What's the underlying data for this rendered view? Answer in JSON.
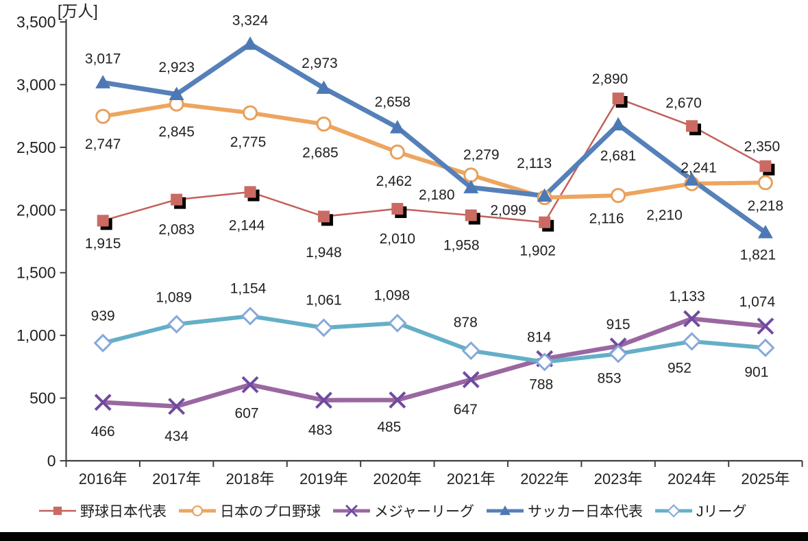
{
  "page": {
    "background": "#ffffff",
    "bottom_bar_color": "#000000"
  },
  "chart_data": {
    "type": "line",
    "title": "",
    "unit_label": "[万人]",
    "grid": false,
    "legend_position": "bottom",
    "categories": [
      "2016年",
      "2017年",
      "2018年",
      "2019年",
      "2020年",
      "2021年",
      "2022年",
      "2023年",
      "2024年",
      "2025年"
    ],
    "y_axis": {
      "min": 0,
      "max": 3500,
      "tick_interval": 500,
      "tick_labels": [
        "0",
        "500",
        "1,000",
        "1,500",
        "2,000",
        "2,500",
        "3,000",
        "3,500"
      ]
    },
    "series": [
      {
        "id": "baseball_japan",
        "name": "野球日本代表",
        "color": "#C4605A",
        "marker": "square-shadow",
        "marker_color": "#CB6A63",
        "line_width": 2.5,
        "values": [
          1915,
          2083,
          2144,
          1948,
          2010,
          1958,
          1902,
          2890,
          2670,
          2350
        ],
        "labels": [
          "1,915",
          "2,083",
          "2,144",
          "1,948",
          "2,010",
          "1,958",
          "1,902",
          "2,890",
          "2,670",
          "2,350"
        ],
        "label_offsets": [
          [
            0,
            33
          ],
          [
            0,
            43
          ],
          [
            -5,
            48
          ],
          [
            0,
            52
          ],
          [
            0,
            43
          ],
          [
            -14,
            43
          ],
          [
            -10,
            41
          ],
          [
            -12,
            -29
          ],
          [
            -12,
            -34
          ],
          [
            -5,
            -29
          ]
        ]
      },
      {
        "id": "npb",
        "name": "日本のプロ野球",
        "color": "#EDA55F",
        "marker": "circle-open",
        "marker_color": "#E8A05C",
        "line_width": 6,
        "values": [
          2747,
          2845,
          2775,
          2685,
          2462,
          2279,
          2099,
          2116,
          2210,
          2218
        ],
        "labels": [
          "2,747",
          "2,845",
          "2,775",
          "2,685",
          "2,462",
          "2,279",
          "2,099",
          "2,116",
          "2,210",
          "2,218"
        ],
        "label_offsets": [
          [
            0,
            40
          ],
          [
            0,
            40
          ],
          [
            -3,
            42
          ],
          [
            -5,
            41
          ],
          [
            -5,
            42
          ],
          [
            15,
            -30
          ],
          [
            -53,
            18
          ],
          [
            -17,
            33
          ],
          [
            -40,
            45
          ],
          [
            0,
            33
          ]
        ]
      },
      {
        "id": "mlb",
        "name": "メジャーリーグ",
        "color": "#9A67A1",
        "marker": "x-cross",
        "marker_color": "#6F4BA0",
        "line_width": 6.5,
        "values": [
          466,
          434,
          607,
          483,
          485,
          647,
          814,
          915,
          1133,
          1074
        ],
        "labels": [
          "466",
          "434",
          "607",
          "483",
          "485",
          "647",
          "814",
          "915",
          "1,133",
          "1,074"
        ],
        "label_offsets": [
          [
            0,
            42
          ],
          [
            0,
            43
          ],
          [
            -5,
            41
          ],
          [
            -5,
            43
          ],
          [
            -12,
            39
          ],
          [
            -8,
            43
          ],
          [
            -8,
            -32
          ],
          [
            0,
            -32
          ],
          [
            -7,
            -33
          ],
          [
            -12,
            -36
          ]
        ]
      },
      {
        "id": "soccer_japan",
        "name": "サッカー日本代表",
        "color": "#5580B9",
        "marker": "triangle",
        "marker_color": "#4C79B5",
        "line_width": 7,
        "values": [
          3017,
          2923,
          3324,
          2973,
          2658,
          2180,
          2113,
          2681,
          2241,
          1821
        ],
        "labels": [
          "3,017",
          "2,923",
          "3,324",
          "2,973",
          "2,658",
          "2,180",
          "2,113",
          "2,681",
          "2,241",
          "1,821"
        ],
        "label_offsets": [
          [
            0,
            -35
          ],
          [
            0,
            -40
          ],
          [
            0,
            -35
          ],
          [
            -6,
            -37
          ],
          [
            -7,
            -38
          ],
          [
            -50,
            10
          ],
          [
            -15,
            -48
          ],
          [
            0,
            45
          ],
          [
            10,
            -18
          ],
          [
            -11,
            32
          ]
        ]
      },
      {
        "id": "j_league",
        "name": "Jリーグ",
        "color": "#64AFC8",
        "marker": "diamond-open",
        "marker_color": "#85A9DA",
        "line_width": 6,
        "values": [
          939,
          1089,
          1154,
          1061,
          1098,
          878,
          788,
          853,
          952,
          901
        ],
        "labels": [
          "939",
          "1,089",
          "1,154",
          "1,061",
          "1,098",
          "878",
          "788",
          "853",
          "952",
          "901"
        ],
        "label_offsets": [
          [
            0,
            -40
          ],
          [
            -4,
            -40
          ],
          [
            -3,
            -41
          ],
          [
            0,
            -41
          ],
          [
            -8,
            -41
          ],
          [
            -8,
            -42
          ],
          [
            -5,
            32
          ],
          [
            -13,
            35
          ],
          [
            -18,
            38
          ],
          [
            -13,
            35
          ]
        ]
      }
    ]
  }
}
